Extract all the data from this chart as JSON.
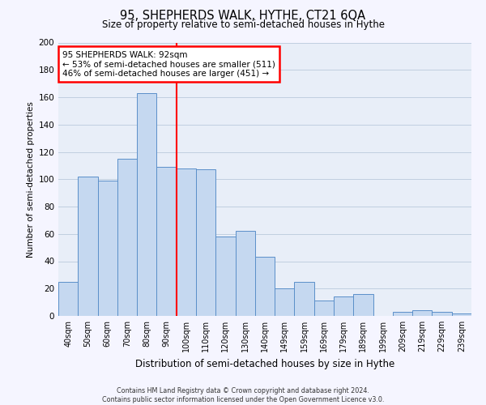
{
  "title": "95, SHEPHERDS WALK, HYTHE, CT21 6QA",
  "subtitle": "Size of property relative to semi-detached houses in Hythe",
  "xlabel": "Distribution of semi-detached houses by size in Hythe",
  "ylabel": "Number of semi-detached properties",
  "bar_labels": [
    "40sqm",
    "50sqm",
    "60sqm",
    "70sqm",
    "80sqm",
    "90sqm",
    "100sqm",
    "110sqm",
    "120sqm",
    "130sqm",
    "140sqm",
    "149sqm",
    "159sqm",
    "169sqm",
    "179sqm",
    "189sqm",
    "199sqm",
    "209sqm",
    "219sqm",
    "229sqm",
    "239sqm"
  ],
  "bar_values": [
    25,
    102,
    99,
    115,
    163,
    109,
    108,
    107,
    58,
    62,
    43,
    20,
    25,
    11,
    14,
    16,
    0,
    3,
    4,
    3,
    2
  ],
  "bar_color": "#c5d8f0",
  "bar_edge_color": "#5b8fc9",
  "vline_color": "red",
  "property_label": "95 SHEPHERDS WALK: 92sqm",
  "pct_smaller": 53,
  "n_smaller": 511,
  "pct_larger": 46,
  "n_larger": 451,
  "ylim": [
    0,
    200
  ],
  "yticks": [
    0,
    20,
    40,
    60,
    80,
    100,
    120,
    140,
    160,
    180,
    200
  ],
  "grid_color": "#c0cfe0",
  "bg_color": "#e8eef8",
  "fig_bg_color": "#f5f5ff",
  "footer_line1": "Contains HM Land Registry data © Crown copyright and database right 2024.",
  "footer_line2": "Contains public sector information licensed under the Open Government Licence v3.0.",
  "vline_bar_index": 5,
  "title_fontsize": 10.5,
  "subtitle_fontsize": 8.5
}
